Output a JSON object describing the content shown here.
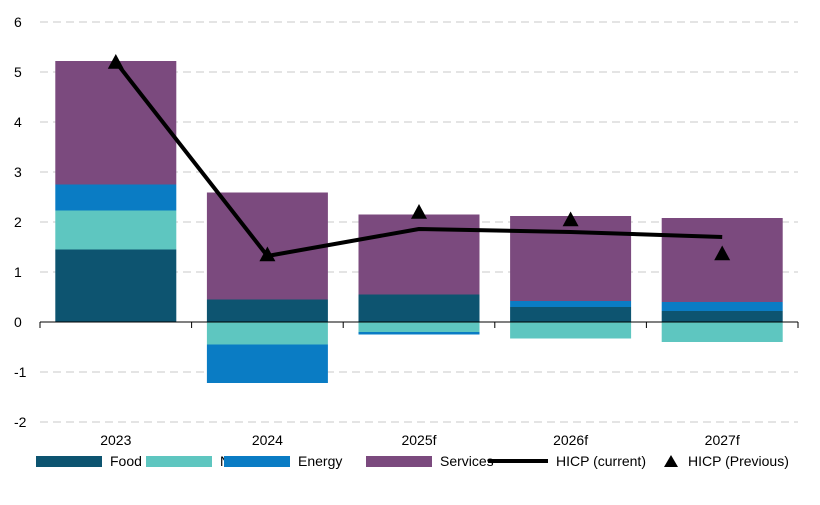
{
  "chart_data": {
    "type": "bar",
    "stacked": true,
    "categories": [
      "2023",
      "2024",
      "2025f",
      "2026f",
      "2027f"
    ],
    "series": [
      {
        "name": "Food",
        "color": "#0d5470",
        "values": [
          1.45,
          0.45,
          0.55,
          0.3,
          0.22
        ]
      },
      {
        "name": "NEIG",
        "color": "#5ec6c0",
        "values": [
          0.78,
          -0.45,
          -0.2,
          -0.33,
          -0.4
        ]
      },
      {
        "name": "Energy",
        "color": "#0a7cc4",
        "values": [
          0.52,
          -0.77,
          -0.05,
          0.12,
          0.18
        ]
      },
      {
        "name": "Services",
        "color": "#7b4a7e",
        "values": [
          2.47,
          2.14,
          1.6,
          1.7,
          1.68
        ]
      }
    ],
    "lines": [
      {
        "name": "HICP (current)",
        "type": "line",
        "color": "#000000",
        "values": [
          5.2,
          1.32,
          1.86,
          1.8,
          1.7
        ]
      },
      {
        "name": "HICP (Previous)",
        "type": "marker",
        "color": "#000000",
        "values": [
          5.2,
          1.35,
          2.2,
          2.05,
          1.37
        ]
      }
    ],
    "ylim": [
      -2,
      6
    ],
    "yticks": [
      "6",
      "5",
      "4",
      "3",
      "2",
      "1",
      "0",
      "-1",
      "-2"
    ],
    "grid": true,
    "legend_position": "bottom",
    "title": "",
    "xlabel": "",
    "ylabel": ""
  },
  "legend": {
    "food": "Food",
    "neig": "NEIG",
    "energy": "Energy",
    "services": "Services",
    "hicp_current": "HICP (current)",
    "hicp_previous": "HICP (Previous)"
  }
}
